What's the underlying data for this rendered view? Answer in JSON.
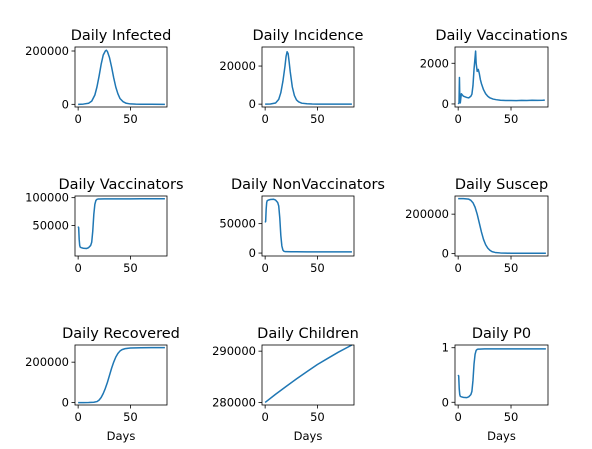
{
  "style": {
    "line_color": "#1f77b4",
    "axes_color": "#000000",
    "background": "#ffffff"
  },
  "chart_data": [
    {
      "type": "line",
      "title": "Daily Infected",
      "xlabel": "",
      "ylabel": "",
      "xlim": [
        -3,
        85
      ],
      "ylim": [
        -10000,
        215000
      ],
      "xticks": [
        0,
        50
      ],
      "xtick_labels": [
        "0",
        "50"
      ],
      "yticks": [
        0,
        200000
      ],
      "ytick_labels": [
        "0",
        "200000"
      ],
      "grid": false,
      "series": [
        {
          "x": [
            0,
            5,
            10,
            13,
            16,
            18,
            20,
            22,
            24,
            26,
            27,
            28,
            30,
            32,
            34,
            36,
            38,
            40,
            43,
            46,
            50,
            55,
            60,
            70,
            83
          ],
          "y": [
            0,
            1000,
            4000,
            12000,
            35000,
            65000,
            105000,
            150000,
            185000,
            200000,
            203000,
            198000,
            175000,
            140000,
            100000,
            65000,
            40000,
            22000,
            10000,
            4000,
            1500,
            600,
            200,
            100,
            50
          ]
        }
      ]
    },
    {
      "type": "line",
      "title": "Daily Incidence",
      "xlabel": "",
      "ylabel": "",
      "xlim": [
        -3,
        85
      ],
      "ylim": [
        -1500,
        30000
      ],
      "xticks": [
        0,
        50
      ],
      "xtick_labels": [
        "0",
        "50"
      ],
      "yticks": [
        0,
        20000
      ],
      "ytick_labels": [
        "0",
        "20000"
      ],
      "grid": false,
      "series": [
        {
          "x": [
            0,
            5,
            10,
            13,
            15,
            17,
            19,
            20,
            21,
            22,
            23,
            24,
            26,
            28,
            30,
            32,
            35,
            40,
            45,
            50,
            60,
            70,
            83
          ],
          "y": [
            0,
            100,
            600,
            2500,
            6000,
            12000,
            20000,
            25000,
            27500,
            26500,
            22000,
            17000,
            9000,
            4500,
            2200,
            1200,
            500,
            200,
            80,
            40,
            20,
            10,
            5
          ]
        }
      ]
    },
    {
      "type": "line",
      "title": "Daily Vaccinations",
      "xlabel": "",
      "ylabel": "",
      "xlim": [
        -3,
        85
      ],
      "ylim": [
        -150,
        2800
      ],
      "xticks": [
        0,
        50
      ],
      "xtick_labels": [
        "0",
        "50"
      ],
      "yticks": [
        0,
        2000
      ],
      "ytick_labels": [
        "0",
        "2000"
      ],
      "grid": false,
      "series": [
        {
          "x": [
            0,
            0.8,
            1.2,
            1.6,
            2,
            3,
            5,
            8,
            10,
            12,
            13,
            14,
            15,
            16,
            16.5,
            17,
            18,
            19,
            20,
            21,
            22,
            24,
            26,
            28,
            30,
            33,
            36,
            40,
            45,
            50,
            55,
            60,
            65,
            70,
            75,
            80,
            82
          ],
          "y": [
            0,
            50,
            1300,
            150,
            50,
            500,
            380,
            320,
            300,
            380,
            480,
            900,
            1700,
            2300,
            2600,
            2000,
            1600,
            1700,
            1500,
            1200,
            1000,
            700,
            500,
            380,
            300,
            240,
            210,
            180,
            170,
            170,
            165,
            175,
            170,
            180,
            175,
            180,
            190
          ]
        }
      ]
    },
    {
      "type": "line",
      "title": "Daily Vaccinators",
      "xlabel": "",
      "ylabel": "",
      "xlim": [
        -3,
        85
      ],
      "ylim": [
        -5000,
        103000
      ],
      "xticks": [
        0,
        50
      ],
      "xtick_labels": [
        "0",
        "50"
      ],
      "yticks": [
        50000,
        100000
      ],
      "ytick_labels": [
        "50000",
        "100000"
      ],
      "grid": false,
      "series": [
        {
          "x": [
            0,
            0.5,
            1,
            1.5,
            2,
            3,
            5,
            8,
            10,
            12,
            13,
            14,
            15,
            16,
            17,
            18,
            19,
            20,
            25,
            30,
            40,
            50,
            60,
            70,
            83
          ],
          "y": [
            48000,
            46000,
            25000,
            14000,
            11000,
            10000,
            9000,
            8500,
            10000,
            14000,
            20000,
            40000,
            70000,
            88000,
            95000,
            97000,
            97500,
            97500,
            97800,
            97800,
            97900,
            97900,
            98000,
            98000,
            98000
          ]
        }
      ]
    },
    {
      "type": "line",
      "title": "Daily NonVaccinators",
      "xlabel": "",
      "ylabel": "",
      "xlim": [
        -3,
        85
      ],
      "ylim": [
        -5000,
        97000
      ],
      "xticks": [
        0,
        50
      ],
      "xtick_labels": [
        "0",
        "50"
      ],
      "yticks": [
        0,
        50000
      ],
      "ytick_labels": [
        "0",
        "50000"
      ],
      "grid": false,
      "series": [
        {
          "x": [
            0,
            0.5,
            1,
            1.5,
            2,
            3,
            5,
            8,
            10,
            12,
            13,
            14,
            15,
            16,
            17,
            18,
            19,
            20,
            25,
            30,
            40,
            50,
            60,
            70,
            83
          ],
          "y": [
            52000,
            54000,
            75000,
            86000,
            89000,
            90000,
            91000,
            91500,
            90000,
            86000,
            80000,
            60000,
            30000,
            12000,
            5000,
            3000,
            2500,
            2500,
            2200,
            2200,
            2100,
            2100,
            2000,
            2000,
            2000
          ]
        }
      ]
    },
    {
      "type": "line",
      "title": "Daily Suscep",
      "xlabel": "",
      "ylabel": "",
      "xlim": [
        -3,
        85
      ],
      "ylim": [
        -12000,
        292000
      ],
      "xticks": [
        0,
        50
      ],
      "xtick_labels": [
        "0",
        "50"
      ],
      "yticks": [
        0,
        200000
      ],
      "ytick_labels": [
        "0",
        "200000"
      ],
      "grid": false,
      "series": [
        {
          "x": [
            0,
            5,
            10,
            12,
            14,
            16,
            18,
            20,
            22,
            24,
            26,
            28,
            30,
            32,
            35,
            40,
            45,
            50,
            60,
            70,
            83
          ],
          "y": [
            279000,
            278500,
            276000,
            270000,
            258000,
            235000,
            200000,
            155000,
            110000,
            72000,
            45000,
            28000,
            17000,
            10000,
            6000,
            3500,
            2500,
            2000,
            1800,
            1700,
            1700
          ]
        }
      ]
    },
    {
      "type": "line",
      "title": "Daily Recovered",
      "xlabel": "Days",
      "ylabel": "",
      "xlim": [
        -3,
        85
      ],
      "ylim": [
        -12000,
        285000
      ],
      "xticks": [
        0,
        50
      ],
      "xtick_labels": [
        "0",
        "50"
      ],
      "yticks": [
        0,
        200000
      ],
      "ytick_labels": [
        "0",
        "200000"
      ],
      "grid": false,
      "series": [
        {
          "x": [
            0,
            5,
            10,
            15,
            18,
            20,
            22,
            24,
            26,
            28,
            30,
            32,
            34,
            36,
            38,
            40,
            42,
            45,
            50,
            55,
            60,
            70,
            83
          ],
          "y": [
            0,
            0,
            200,
            1500,
            5000,
            12000,
            25000,
            45000,
            70000,
            100000,
            135000,
            170000,
            200000,
            225000,
            243000,
            255000,
            262000,
            267000,
            270000,
            271000,
            271500,
            272000,
            272000
          ]
        }
      ]
    },
    {
      "type": "line",
      "title": "Daily Children",
      "xlabel": "Days",
      "ylabel": "",
      "xlim": [
        -3,
        85
      ],
      "ylim": [
        279500,
        291200
      ],
      "xticks": [
        0,
        50
      ],
      "xtick_labels": [
        "0",
        "50"
      ],
      "yticks": [
        280000,
        290000
      ],
      "ytick_labels": [
        "280000",
        "290000"
      ],
      "grid": false,
      "series": [
        {
          "x": [
            0,
            10,
            20,
            30,
            40,
            50,
            60,
            70,
            83
          ],
          "y": [
            280000,
            281600,
            283100,
            284600,
            286000,
            287400,
            288600,
            289800,
            291200
          ]
        }
      ]
    },
    {
      "type": "line",
      "title": "Daily P0",
      "xlabel": "Days",
      "ylabel": "",
      "xlim": [
        -3,
        85
      ],
      "ylim": [
        -0.05,
        1.05
      ],
      "xticks": [
        0,
        50
      ],
      "xtick_labels": [
        "0",
        "50"
      ],
      "yticks": [
        0,
        1
      ],
      "ytick_labels": [
        "0",
        "1"
      ],
      "grid": false,
      "series": [
        {
          "x": [
            0,
            0.5,
            1,
            1.5,
            2,
            3,
            5,
            8,
            10,
            12,
            13,
            14,
            15,
            16,
            17,
            18,
            19,
            20,
            25,
            30,
            40,
            50,
            60,
            70,
            83
          ],
          "y": [
            0.5,
            0.48,
            0.25,
            0.14,
            0.11,
            0.1,
            0.09,
            0.085,
            0.1,
            0.14,
            0.2,
            0.4,
            0.7,
            0.88,
            0.95,
            0.97,
            0.975,
            0.975,
            0.978,
            0.978,
            0.979,
            0.979,
            0.98,
            0.98,
            0.98
          ]
        }
      ]
    }
  ]
}
